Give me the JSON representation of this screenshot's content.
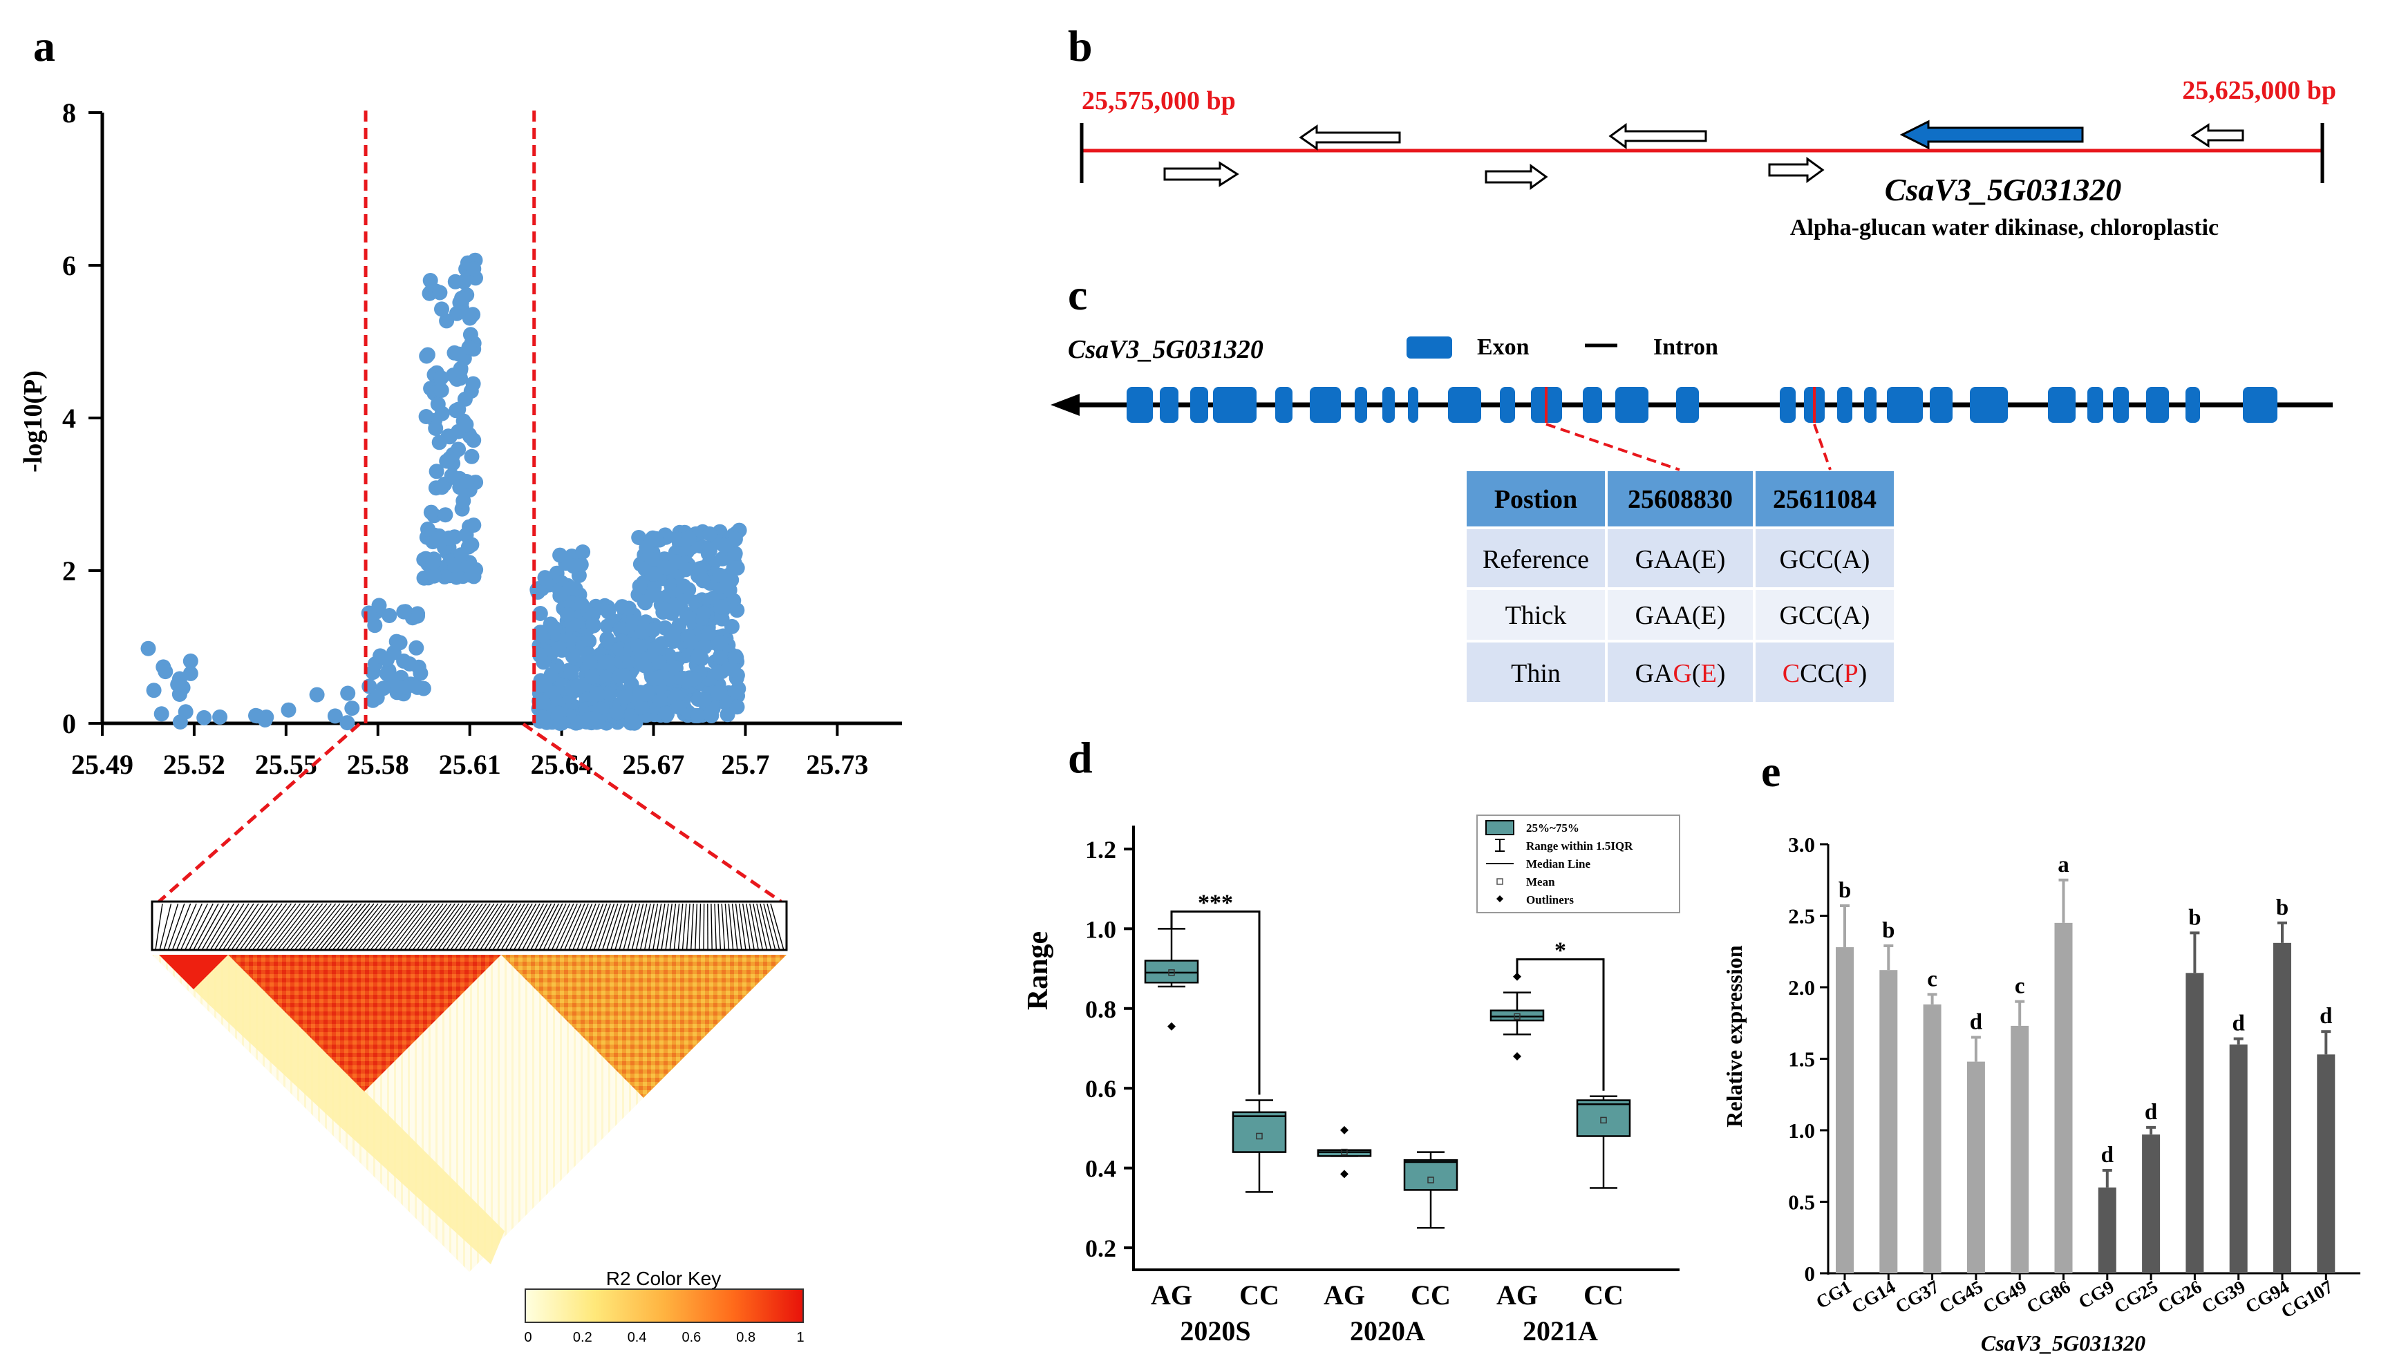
{
  "chart_data": [
    {
      "panel": "a",
      "type": "scatter",
      "panel_label": "a",
      "ylabel": "-log10(P)",
      "xlabel": "",
      "xlim": [
        25.49,
        25.75
      ],
      "ylim": [
        0,
        8
      ],
      "x_ticks": [
        "25.49",
        "25.52",
        "25.55",
        "25.58",
        "25.61",
        "25.64",
        "25.67",
        "25.7",
        "25.73"
      ],
      "y_ticks": [
        "0",
        "2",
        "4",
        "6",
        "8"
      ],
      "point_color": "#5b9bd5",
      "region_lines": [
        25.576,
        25.631
      ],
      "clusters": [
        {
          "x_from": 25.505,
          "x_to": 25.52,
          "y_from": 0,
          "y_to": 1.1,
          "count": 14
        },
        {
          "x_from": 25.52,
          "x_to": 25.575,
          "y_from": 0,
          "y_to": 0.45,
          "count": 12
        },
        {
          "x_from": 25.577,
          "x_to": 25.595,
          "y_from": 0.3,
          "y_to": 1.6,
          "count": 40
        },
        {
          "x_from": 25.595,
          "x_to": 25.612,
          "y_from": 1.9,
          "y_to": 6.1,
          "count": 130
        },
        {
          "x_from": 25.632,
          "x_to": 25.648,
          "y_from": 0,
          "y_to": 2.25,
          "count": 160
        },
        {
          "x_from": 25.648,
          "x_to": 25.665,
          "y_from": 0,
          "y_to": 1.6,
          "count": 150
        },
        {
          "x_from": 25.665,
          "x_to": 25.698,
          "y_from": 0.1,
          "y_to": 2.55,
          "count": 320
        }
      ],
      "ld_color_key": {
        "title": "R2 Color Key",
        "ticks": [
          "0",
          "0.2",
          "0.4",
          "0.6",
          "0.8",
          "1"
        ],
        "colors": [
          "#ffffd8",
          "#ffe87a",
          "#ffb340",
          "#ff6a1a",
          "#ee1c0c"
        ]
      }
    },
    {
      "panel": "b",
      "type": "gene-map",
      "panel_label": "b",
      "start_label": "25,575,000 bp",
      "end_label": "25,625,000 bp",
      "gene_name": "CsaV3_5G031320",
      "gene_desc": "Alpha-glucan water dikinase, chloroplastic",
      "line_color": "#e8171c",
      "gene_color": "#0f6fc6"
    },
    {
      "panel": "c",
      "type": "table",
      "panel_label": "c",
      "gene_name": "CsaV3_5G031320",
      "legend": {
        "exon": "Exon",
        "intron": "Intron"
      },
      "exon_color": "#0f6fc6",
      "table": {
        "header": [
          "Postion",
          "25608830",
          "25611084"
        ],
        "rows": [
          [
            "Reference",
            "GAA(E)",
            "GCC(A)"
          ],
          [
            "Thick",
            "GAA(E)",
            "GCC(A)"
          ]
        ],
        "thin": {
          "label": "Thin",
          "c1_a": "GA",
          "c1_b": "G",
          "c1_c": "(",
          "c1_d": "E",
          "c1_e": ")",
          "c2_a": "C",
          "c2_b": "CC(",
          "c2_c": "P",
          "c2_d": ")"
        },
        "header_color": "#5b9bd5",
        "row_colors": [
          "#d9e2f3",
          "#edf1f9",
          "#d9e2f3"
        ]
      }
    },
    {
      "panel": "d",
      "type": "box",
      "panel_label": "d",
      "ylabel": "Range",
      "ylim": [
        0.15,
        1.25
      ],
      "y_ticks": [
        0.2,
        0.4,
        0.6,
        0.8,
        1.0,
        1.2
      ],
      "y_tick_labels": [
        "0.2",
        "0.4",
        "0.6",
        "0.8",
        "1.0",
        "1.2"
      ],
      "box_color": "#5a9b9b",
      "boxes": [
        {
          "group": "AG",
          "q1": 0.865,
          "q3": 0.92,
          "median": 0.89,
          "mean": 0.89,
          "whisker_low": 0.855,
          "whisker_high": 1.0,
          "outliers": [
            0.755
          ]
        },
        {
          "group": "CC",
          "q1": 0.44,
          "q3": 0.54,
          "median": 0.53,
          "mean": 0.48,
          "whisker_low": 0.34,
          "whisker_high": 0.57,
          "outliers": []
        },
        {
          "group": "AG",
          "q1": 0.43,
          "q3": 0.445,
          "median": 0.44,
          "mean": 0.44,
          "whisker_low": 0.43,
          "whisker_high": 0.445,
          "outliers": [
            0.495,
            0.385
          ]
        },
        {
          "group": "CC",
          "q1": 0.345,
          "q3": 0.42,
          "median": 0.415,
          "mean": 0.37,
          "whisker_low": 0.25,
          "whisker_high": 0.44,
          "outliers": []
        },
        {
          "group": "AG",
          "q1": 0.77,
          "q3": 0.795,
          "median": 0.78,
          "mean": 0.78,
          "whisker_low": 0.735,
          "whisker_high": 0.84,
          "outliers": [
            0.88,
            0.68
          ]
        },
        {
          "group": "CC",
          "q1": 0.48,
          "q3": 0.57,
          "median": 0.56,
          "mean": 0.52,
          "whisker_low": 0.35,
          "whisker_high": 0.58,
          "outliers": []
        }
      ],
      "seasons": [
        "2020S",
        "2020A",
        "2021A"
      ],
      "significance": [
        {
          "label": "***",
          "from": 0,
          "to": 1
        },
        {
          "label": "*",
          "from": 4,
          "to": 5
        }
      ],
      "legend": [
        "25%~75%",
        "Range within 1.5IQR",
        "Median Line",
        "Mean",
        "Outliners"
      ]
    },
    {
      "panel": "e",
      "type": "bar",
      "panel_label": "e",
      "ylabel": "Relative expression",
      "xlabel": "CsaV3_5G031320",
      "ylim": [
        0,
        3.0
      ],
      "y_ticks": [
        0,
        0.5,
        1.0,
        1.5,
        2.0,
        2.5,
        3.0
      ],
      "y_tick_labels": [
        "0",
        "0.5",
        "1.0",
        "1.5",
        "2.0",
        "2.5",
        "3.0"
      ],
      "categories": [
        "CG1",
        "CG14",
        "CG37",
        "CG45",
        "CG49",
        "CG86",
        "CG9",
        "CG25",
        "CG26",
        "CG39",
        "CG94",
        "CG107"
      ],
      "values": [
        2.28,
        2.12,
        1.88,
        1.48,
        1.73,
        2.45,
        0.6,
        0.97,
        2.1,
        1.6,
        2.31,
        1.53
      ],
      "errors": [
        0.29,
        0.17,
        0.07,
        0.17,
        0.17,
        0.3,
        0.12,
        0.05,
        0.28,
        0.04,
        0.14,
        0.16
      ],
      "letters": [
        "b",
        "b",
        "c",
        "d",
        "c",
        "a",
        "d",
        "d",
        "b",
        "d",
        "b",
        "d"
      ],
      "bar_colors": [
        "#a6a6a6",
        "#a6a6a6",
        "#a6a6a6",
        "#a6a6a6",
        "#a6a6a6",
        "#a6a6a6",
        "#595959",
        "#595959",
        "#595959",
        "#595959",
        "#595959",
        "#595959"
      ]
    }
  ]
}
